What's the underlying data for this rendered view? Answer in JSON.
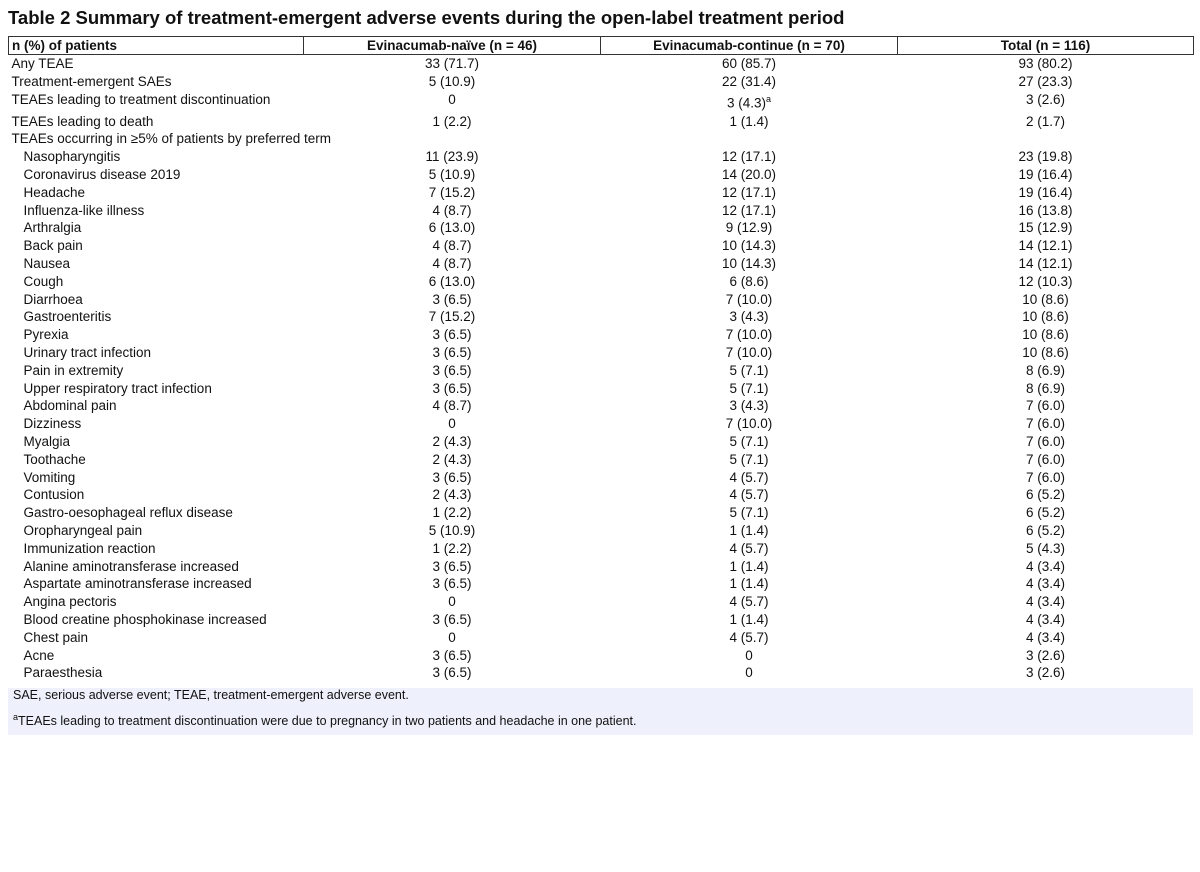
{
  "title": "Table 2 Summary of treatment-emergent adverse events during the open-label treatment period",
  "table": {
    "header": [
      "n (%) of patients",
      "Evinacumab-naïve (n = 46)",
      "Evinacumab-continue (n = 70)",
      "Total (n = 116)"
    ],
    "rows": [
      [
        "Any TEAE",
        "33 (71.7)",
        "60 (85.7)",
        "93 (80.2)"
      ],
      [
        "Treatment-emergent SAEs",
        "5 (10.9)",
        "22 (31.4)",
        "27 (23.3)"
      ],
      [
        "TEAEs leading to treatment discontinuation",
        "0",
        {
          "text": "3 (4.3)",
          "sup": "a"
        },
        "3 (2.6)"
      ],
      [
        "TEAEs leading to death",
        "1 (2.2)",
        "1 (1.4)",
        "2 (1.7)"
      ]
    ],
    "section": "TEAEs occurring in ≥5% of patients by preferred term",
    "preferred_terms": [
      [
        "Nasopharyngitis",
        "11 (23.9)",
        "12 (17.1)",
        "23 (19.8)"
      ],
      [
        "Coronavirus disease 2019",
        "5 (10.9)",
        "14 (20.0)",
        "19 (16.4)"
      ],
      [
        "Headache",
        "7 (15.2)",
        "12 (17.1)",
        "19 (16.4)"
      ],
      [
        "Influenza-like illness",
        "4 (8.7)",
        "12 (17.1)",
        "16 (13.8)"
      ],
      [
        "Arthralgia",
        "6 (13.0)",
        "9 (12.9)",
        "15 (12.9)"
      ],
      [
        "Back pain",
        "4 (8.7)",
        "10 (14.3)",
        "14 (12.1)"
      ],
      [
        "Nausea",
        "4 (8.7)",
        "10 (14.3)",
        "14 (12.1)"
      ],
      [
        "Cough",
        "6 (13.0)",
        "6 (8.6)",
        "12 (10.3)"
      ],
      [
        "Diarrhoea",
        "3 (6.5)",
        "7 (10.0)",
        "10 (8.6)"
      ],
      [
        "Gastroenteritis",
        "7 (15.2)",
        "3 (4.3)",
        "10 (8.6)"
      ],
      [
        "Pyrexia",
        "3 (6.5)",
        "7 (10.0)",
        "10 (8.6)"
      ],
      [
        "Urinary tract infection",
        "3 (6.5)",
        "7 (10.0)",
        "10 (8.6)"
      ],
      [
        "Pain in extremity",
        "3 (6.5)",
        "5 (7.1)",
        "8 (6.9)"
      ],
      [
        "Upper respiratory tract infection",
        "3 (6.5)",
        "5 (7.1)",
        "8 (6.9)"
      ],
      [
        "Abdominal pain",
        "4 (8.7)",
        "3 (4.3)",
        "7 (6.0)"
      ],
      [
        "Dizziness",
        "0",
        "7 (10.0)",
        "7 (6.0)"
      ],
      [
        "Myalgia",
        "2 (4.3)",
        "5 (7.1)",
        "7 (6.0)"
      ],
      [
        "Toothache",
        "2 (4.3)",
        "5 (7.1)",
        "7 (6.0)"
      ],
      [
        "Vomiting",
        "3 (6.5)",
        "4 (5.7)",
        "7 (6.0)"
      ],
      [
        "Contusion",
        "2 (4.3)",
        "4 (5.7)",
        "6 (5.2)"
      ],
      [
        "Gastro-oesophageal reflux disease",
        "1 (2.2)",
        "5 (7.1)",
        "6 (5.2)"
      ],
      [
        "Oropharyngeal pain",
        "5 (10.9)",
        "1 (1.4)",
        "6 (5.2)"
      ],
      [
        "Immunization reaction",
        "1 (2.2)",
        "4 (5.7)",
        "5 (4.3)"
      ],
      [
        "Alanine aminotransferase increased",
        "3 (6.5)",
        "1 (1.4)",
        "4 (3.4)"
      ],
      [
        "Aspartate aminotransferase increased",
        "3 (6.5)",
        "1 (1.4)",
        "4 (3.4)"
      ],
      [
        "Angina pectoris",
        "0",
        "4 (5.7)",
        "4 (3.4)"
      ],
      [
        "Blood creatine phosphokinase increased",
        "3 (6.5)",
        "1 (1.4)",
        "4 (3.4)"
      ],
      [
        "Chest pain",
        "0",
        "4 (5.7)",
        "4 (3.4)"
      ],
      [
        "Acne",
        "3 (6.5)",
        "0",
        "3 (2.6)"
      ],
      [
        "Paraesthesia",
        "3 (6.5)",
        "0",
        "3 (2.6)"
      ]
    ]
  },
  "footnotes": [
    "SAE, serious adverse event; TEAE, treatment-emergent adverse event.",
    {
      "sup": "a",
      "text": "TEAEs leading to treatment discontinuation were due to pregnancy in two patients and headache in one patient."
    }
  ]
}
